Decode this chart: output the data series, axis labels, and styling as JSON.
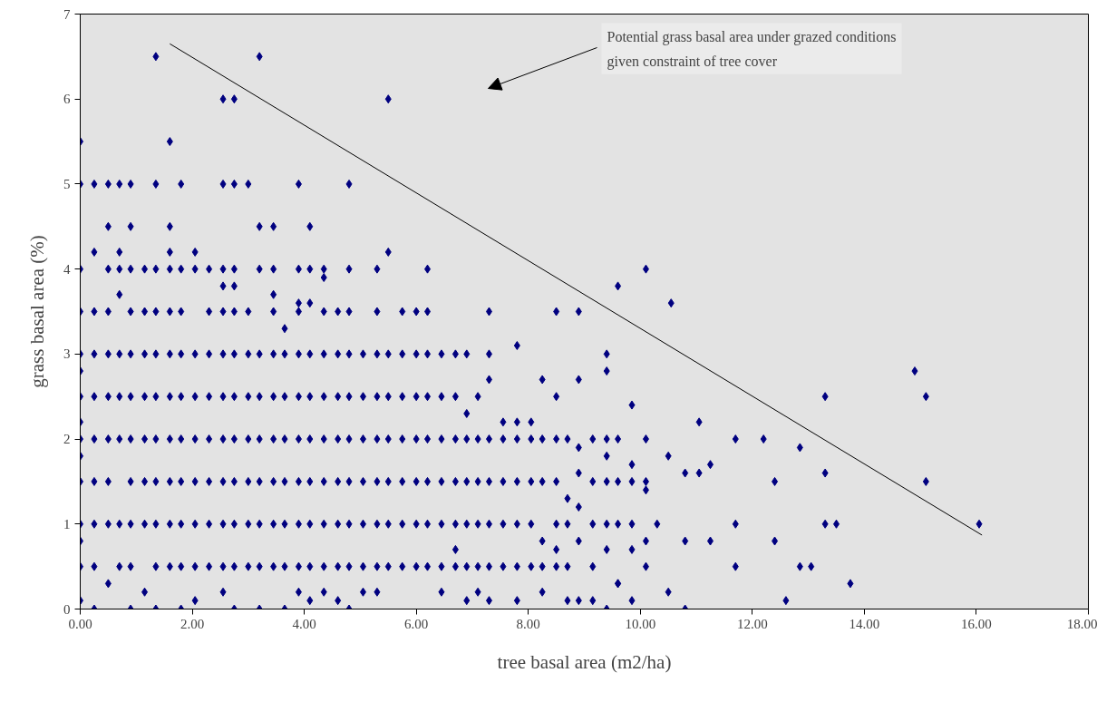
{
  "chart_data": {
    "type": "scatter",
    "xlabel": "tree basal area (m2/ha)",
    "ylabel": "grass basal area (%)",
    "xlim": [
      0,
      18
    ],
    "xticks": [
      {
        "value": 0,
        "label": "0.00"
      },
      {
        "value": 2,
        "label": "2.00"
      },
      {
        "value": 4,
        "label": "4.00"
      },
      {
        "value": 6,
        "label": "6.00"
      },
      {
        "value": 8,
        "label": "8.00"
      },
      {
        "value": 10,
        "label": "10.00"
      },
      {
        "value": 12,
        "label": "12.00"
      },
      {
        "value": 14,
        "label": "14.00"
      },
      {
        "value": 16,
        "label": "16.00"
      },
      {
        "value": 18,
        "label": "18.00"
      }
    ],
    "ylim": [
      0,
      7
    ],
    "yticks": [
      0,
      1,
      2,
      3,
      4,
      5,
      6,
      7
    ],
    "grid": false,
    "annotations": [
      "Potential grass basal area under grazed conditions\ngiven constraint of tree cover"
    ],
    "series": [
      {
        "marker": "diamond",
        "color": "#000080",
        "x": [
          0,
          1.35,
          3.2,
          2.55,
          2.75,
          5.5,
          1.6,
          0,
          0.25,
          0.5,
          0.7,
          0.9,
          1.35,
          1.8,
          2.55,
          2.75,
          3.0,
          3.9,
          4.8,
          5.3,
          5.5,
          6.2,
          10.1,
          9.6,
          10.55,
          14.9,
          15.1,
          13.3,
          15.1,
          16.05,
          13.75,
          12.6,
          13.3,
          12.85,
          12.2,
          11.7,
          11.05,
          13.5,
          13.3,
          12.85,
          13.05,
          12.4,
          12.4,
          11.7,
          11.7,
          10.8,
          9.4,
          9.4,
          8.9,
          8.5,
          7.8,
          7.3,
          7.3,
          10.1,
          9.85,
          10.5,
          10.8,
          11.05,
          11.25,
          10.5,
          10.1,
          9.85,
          9.6,
          11.25,
          10.8,
          10.3,
          9.4,
          0,
          0,
          0,
          0,
          0,
          0,
          0,
          0,
          0,
          0,
          0,
          0,
          0,
          0.25,
          0.25,
          0.25,
          0.25,
          0.25,
          0.25,
          0.25,
          0.25,
          0.25,
          0.5,
          0.5,
          0.5,
          0.5,
          0.5,
          0.5,
          0.5,
          0.5,
          0.5,
          0.7,
          0.7,
          0.7,
          0.7,
          0.7,
          0.7,
          0.7,
          0.7,
          0.9,
          0.9,
          0.9,
          0.9,
          0.9,
          0.9,
          0.9,
          0.9,
          0.9,
          0.9,
          1.15,
          1.15,
          1.15,
          1.15,
          1.15,
          1.15,
          1.15,
          1.15,
          1.35,
          1.35,
          1.35,
          1.35,
          1.35,
          1.35,
          1.35,
          1.35,
          1.35,
          1.6,
          1.6,
          1.6,
          1.6,
          1.6,
          1.6,
          1.6,
          1.6,
          1.6,
          1.6,
          1.8,
          1.8,
          1.8,
          1.8,
          1.8,
          1.8,
          1.8,
          1.8,
          1.8,
          2.05,
          2.05,
          2.05,
          2.05,
          2.05,
          2.05,
          2.05,
          2.05,
          2.05,
          2.3,
          2.3,
          2.3,
          2.3,
          2.3,
          2.3,
          2.3,
          2.3,
          2.55,
          2.55,
          2.55,
          2.55,
          2.55,
          2.55,
          2.55,
          2.55,
          2.55,
          2.55,
          2.75,
          2.75,
          2.75,
          2.75,
          2.75,
          2.75,
          2.75,
          2.75,
          2.75,
          2.75,
          3.0,
          3.0,
          3.0,
          3.0,
          3.0,
          3.0,
          3.0,
          3.2,
          3.2,
          3.2,
          3.2,
          3.2,
          3.2,
          3.2,
          3.2,
          3.2,
          3.45,
          3.45,
          3.45,
          3.45,
          3.45,
          3.45,
          3.45,
          3.45,
          3.45,
          3.45,
          3.65,
          3.65,
          3.65,
          3.65,
          3.65,
          3.65,
          3.65,
          3.65,
          3.9,
          3.9,
          3.9,
          3.9,
          3.9,
          3.9,
          3.9,
          3.9,
          3.9,
          3.9,
          4.1,
          4.1,
          4.1,
          4.1,
          4.1,
          4.1,
          4.1,
          4.1,
          4.1,
          4.1,
          4.35,
          4.35,
          4.35,
          4.35,
          4.35,
          4.35,
          4.35,
          4.35,
          4.35,
          4.35,
          4.6,
          4.6,
          4.6,
          4.6,
          4.6,
          4.6,
          4.6,
          4.6,
          4.8,
          4.8,
          4.8,
          4.8,
          4.8,
          4.8,
          4.8,
          4.8,
          4.8,
          5.05,
          5.05,
          5.05,
          5.05,
          5.05,
          5.05,
          5.05,
          5.3,
          5.3,
          5.3,
          5.3,
          5.3,
          5.3,
          5.3,
          5.3,
          5.5,
          5.5,
          5.5,
          5.5,
          5.5,
          5.5,
          5.75,
          5.75,
          5.75,
          5.75,
          5.75,
          5.75,
          5.75,
          6.0,
          6.0,
          6.0,
          6.0,
          6.0,
          6.0,
          6.0,
          6.2,
          6.2,
          6.2,
          6.2,
          6.2,
          6.2,
          6.2,
          6.45,
          6.45,
          6.45,
          6.45,
          6.45,
          6.45,
          6.45,
          6.7,
          6.7,
          6.7,
          6.7,
          6.7,
          6.7,
          6.7,
          6.9,
          6.9,
          6.9,
          6.9,
          6.9,
          6.9,
          6.9,
          7.1,
          7.1,
          7.1,
          7.1,
          7.1,
          7.1,
          7.3,
          7.3,
          7.3,
          7.3,
          7.3,
          7.3,
          7.55,
          7.55,
          7.55,
          7.55,
          7.55,
          7.8,
          7.8,
          7.8,
          7.8,
          7.8,
          7.8,
          8.05,
          8.05,
          8.05,
          8.05,
          8.05,
          8.25,
          8.25,
          8.25,
          8.25,
          8.25,
          8.25,
          8.5,
          8.5,
          8.5,
          8.5,
          8.5,
          8.5,
          8.7,
          8.7,
          8.7,
          8.7,
          8.7,
          8.9,
          8.9,
          8.9,
          8.9,
          8.9,
          8.9,
          9.15,
          9.15,
          9.15,
          9.15,
          9.15,
          9.4,
          9.4,
          9.4,
          9.4,
          9.4,
          9.6,
          9.6,
          9.6,
          9.6,
          9.85,
          9.85,
          9.85,
          9.85,
          10.1,
          10.1,
          10.1
        ],
        "values": [
          5.5,
          6.5,
          6.5,
          6,
          6,
          6,
          5.5,
          5,
          5,
          5,
          5,
          5,
          5,
          5,
          5,
          5,
          5,
          5,
          5,
          4,
          4.2,
          4,
          4,
          3.8,
          3.6,
          2.8,
          2.5,
          2.5,
          1.5,
          1.0,
          0.3,
          0.1,
          1.6,
          1.9,
          2.0,
          2.0,
          2.2,
          1.0,
          1.0,
          0.5,
          0.5,
          0.8,
          1.5,
          1.0,
          0.5,
          0,
          0,
          3.0,
          3.5,
          3.5,
          3.1,
          3.5,
          3.0,
          2.0,
          2.4,
          1.8,
          1.6,
          1.6,
          1.7,
          0.2,
          0.5,
          0.1,
          0.3,
          0.8,
          0.8,
          1.0,
          1.8,
          0.1,
          0.5,
          1,
          1.5,
          2,
          2.5,
          3,
          3.5,
          4,
          0.8,
          1.8,
          2.2,
          2.8,
          0,
          0.5,
          1,
          1.5,
          2,
          2.5,
          3,
          3.5,
          4.2,
          0.3,
          1,
          1.5,
          2,
          2.5,
          3,
          3.5,
          4,
          4.5,
          0.5,
          1,
          2,
          2.5,
          3,
          3.7,
          4,
          4.2,
          0,
          0.5,
          1,
          1.5,
          2,
          2.5,
          3,
          3.5,
          4,
          4.5,
          0.2,
          1,
          1.5,
          2,
          2.5,
          3,
          3.5,
          4,
          0,
          0.5,
          1,
          1.5,
          2,
          2.5,
          3,
          3.5,
          4,
          0.5,
          1,
          1.5,
          2,
          2.5,
          3,
          3.5,
          4,
          4.2,
          4.5,
          0,
          0.5,
          1,
          1.5,
          2,
          2.5,
          3,
          3.5,
          4,
          0.1,
          0.5,
          1,
          1.5,
          2,
          2.5,
          3,
          4,
          4.2,
          0.5,
          1,
          1.5,
          2,
          2.5,
          3,
          3.5,
          4,
          0.2,
          0.5,
          1,
          1.5,
          2,
          2.5,
          3,
          3.5,
          3.8,
          4,
          0,
          0.5,
          1,
          1.5,
          2,
          2.5,
          3,
          3.5,
          3.8,
          4,
          0.5,
          1,
          1.5,
          2,
          2.5,
          3,
          3.5,
          0,
          0.5,
          1,
          1.5,
          2,
          2.5,
          3,
          4,
          4.5,
          0.5,
          1,
          1.5,
          2,
          2.5,
          3,
          3.5,
          3.7,
          4,
          4.5,
          0,
          0.5,
          1,
          1.5,
          2,
          2.5,
          3,
          3.3,
          0.2,
          0.5,
          1,
          1.5,
          2,
          2.5,
          3,
          3.5,
          3.6,
          4,
          0.1,
          0.5,
          1,
          1.5,
          2,
          2.5,
          3,
          3.6,
          4,
          4.5,
          0.2,
          0.5,
          1,
          1.5,
          2,
          2.5,
          3,
          3.5,
          3.9,
          4,
          0.1,
          0.5,
          1,
          1.5,
          2,
          2.5,
          3,
          3.5,
          0,
          0.5,
          1,
          1.5,
          2,
          2.5,
          3,
          3.5,
          4,
          0.2,
          0.5,
          1,
          1.5,
          2,
          2.5,
          3,
          0.2,
          0.5,
          1,
          1.5,
          2,
          2.5,
          3,
          3.5,
          0.5,
          1,
          1.5,
          2,
          2.5,
          3,
          0.5,
          1,
          1.5,
          2,
          2.5,
          3,
          3.5,
          0.5,
          1,
          1.5,
          2,
          2.5,
          3,
          3.5,
          0.5,
          1,
          1.5,
          2,
          2.5,
          3,
          3.5,
          0.2,
          0.5,
          1,
          1.5,
          2,
          2.5,
          3,
          0.5,
          0.7,
          1,
          1.5,
          2,
          2.5,
          3,
          0.1,
          0.5,
          1,
          1.5,
          2,
          2.3,
          3,
          0.2,
          0.5,
          1,
          1.5,
          2,
          2.5,
          0.1,
          0.5,
          1,
          1.5,
          2,
          2.7,
          0.5,
          1,
          1.5,
          2,
          2.2,
          0.1,
          0.5,
          1,
          1.5,
          2,
          2.2,
          0.5,
          1,
          1.5,
          2,
          2.2,
          0.2,
          0.5,
          0.8,
          1.5,
          2,
          2.7,
          0.5,
          0.7,
          1,
          1.5,
          2,
          2.5,
          0.1,
          0.5,
          1,
          1.3,
          2,
          0.1,
          0.8,
          1.2,
          1.6,
          1.9,
          2.7,
          0.1,
          0.5,
          1,
          1.5,
          2,
          0.7,
          1.0,
          1.5,
          2,
          2.8,
          0.3,
          1,
          1.5,
          2,
          0.7,
          1,
          1.5,
          1.7,
          0.8,
          1.4,
          1.5
        ]
      },
      {
        "type": "line",
        "color": "#000000",
        "x": [
          1.6,
          16.1
        ],
        "values": [
          6.65,
          0.87
        ]
      }
    ]
  }
}
